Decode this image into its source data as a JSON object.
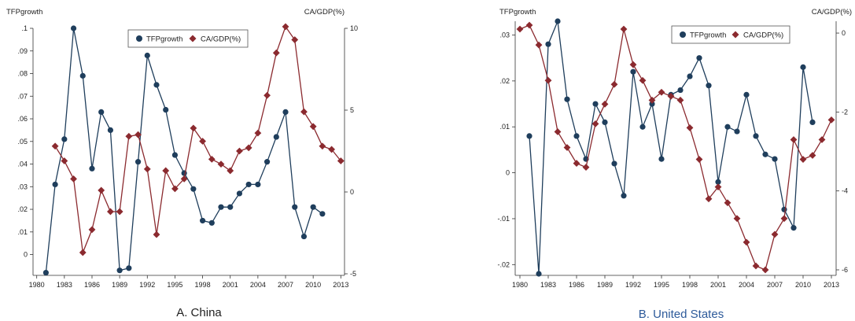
{
  "colors": {
    "tfp": "#1f3e5c",
    "ca": "#8b2a2f",
    "panel_b_title": "#2d5a9a",
    "panel_a_title": "#222222"
  },
  "chart_data": [
    {
      "type": "line",
      "panel_title": "A. China",
      "ylabel_left": "TFPgrowth",
      "ylabel_right": "CA/GDP(%)",
      "x_ticks": [
        1980,
        1983,
        1986,
        1989,
        1992,
        1995,
        1998,
        2001,
        2004,
        2007,
        2010,
        2013
      ],
      "xlim": [
        1979.6,
        2013.4
      ],
      "left_ticks": [
        0.1,
        0.09,
        0.08,
        0.07,
        0.06,
        0.05,
        0.04,
        0.03,
        0.02,
        0.01,
        0
      ],
      "left_tick_labels": [
        ".1",
        ".09",
        ".08",
        ".07",
        ".06",
        ".05",
        ".04",
        ".03",
        ".02",
        ".01",
        "0"
      ],
      "ylim_left": [
        -0.0085,
        0.1
      ],
      "right_ticks": [
        10,
        5,
        0,
        -5
      ],
      "right_tick_labels": [
        "10",
        "5",
        "0",
        "-5"
      ],
      "ylim_right": [
        -5,
        10
      ],
      "legend": {
        "placement": "top-center",
        "labels": [
          "TFPgrowth",
          "CA/GDP(%)"
        ]
      },
      "series": [
        {
          "name": "TFPgrowth",
          "axis": "left",
          "marker": "circle",
          "x": [
            1981,
            1982,
            1983,
            1984,
            1985,
            1986,
            1987,
            1988,
            1989,
            1990,
            1991,
            1992,
            1993,
            1994,
            1995,
            1996,
            1997,
            1998,
            1999,
            2000,
            2001,
            2002,
            2003,
            2004,
            2005,
            2006,
            2007,
            2008,
            2009,
            2010,
            2011
          ],
          "values": [
            -0.008,
            0.031,
            0.051,
            0.1,
            0.079,
            0.038,
            0.063,
            0.055,
            -0.007,
            -0.006,
            0.041,
            0.088,
            0.075,
            0.064,
            0.044,
            0.036,
            0.029,
            0.015,
            0.014,
            0.021,
            0.021,
            0.027,
            0.031,
            0.031,
            0.041,
            0.052,
            0.063,
            0.021,
            0.008,
            0.021,
            0.018
          ]
        },
        {
          "name": "CA/GDP(%)",
          "axis": "right",
          "marker": "diamond",
          "x": [
            1982,
            1983,
            1984,
            1985,
            1986,
            1987,
            1988,
            1989,
            1990,
            1991,
            1992,
            1993,
            1994,
            1995,
            1996,
            1997,
            1998,
            1999,
            2000,
            2001,
            2002,
            2003,
            2004,
            2005,
            2006,
            2007,
            2008,
            2009,
            2010,
            2011,
            2012,
            2013
          ],
          "values": [
            2.8,
            1.9,
            0.8,
            -3.7,
            -2.3,
            0.1,
            -1.2,
            -1.2,
            3.4,
            3.5,
            1.4,
            -2.6,
            1.3,
            0.2,
            0.8,
            3.9,
            3.1,
            2.0,
            1.7,
            1.3,
            2.5,
            2.7,
            3.6,
            5.9,
            8.5,
            10.1,
            9.3,
            4.9,
            4.0,
            2.8,
            2.6,
            1.9
          ]
        }
      ]
    },
    {
      "type": "line",
      "panel_title": "B. United States",
      "ylabel_left": "TFPgrowth",
      "ylabel_right": "CA/GDP(%)",
      "x_ticks": [
        1980,
        1983,
        1986,
        1989,
        1992,
        1995,
        1998,
        2001,
        2004,
        2007,
        2010,
        2013
      ],
      "xlim": [
        1979.5,
        2013.5
      ],
      "left_ticks": [
        0.03,
        0.02,
        0.01,
        0,
        -0.01,
        -0.02
      ],
      "left_tick_labels": [
        ".03",
        ".02",
        ".01",
        "0",
        "-.01",
        "-.02"
      ],
      "ylim_left": [
        -0.022,
        0.033
      ],
      "right_ticks": [
        0,
        -2,
        -4,
        -6
      ],
      "right_tick_labels": [
        "0",
        "-2",
        "-4",
        "-6"
      ],
      "ylim_right": [
        -6.1,
        0.3
      ],
      "legend": {
        "placement": "top-right",
        "labels": [
          "TFPgrowth",
          "CA/GDP(%)"
        ]
      },
      "series": [
        {
          "name": "TFPgrowth",
          "axis": "left",
          "marker": "circle",
          "x": [
            1981,
            1982,
            1983,
            1984,
            1985,
            1986,
            1987,
            1988,
            1989,
            1990,
            1991,
            1992,
            1993,
            1994,
            1995,
            1996,
            1997,
            1998,
            1999,
            2000,
            2001,
            2002,
            2003,
            2004,
            2005,
            2006,
            2007,
            2008,
            2009,
            2010,
            2011
          ],
          "values": [
            0.008,
            -0.022,
            0.028,
            0.033,
            0.016,
            0.008,
            0.003,
            0.015,
            0.011,
            0.002,
            -0.005,
            0.022,
            0.01,
            0.015,
            0.003,
            0.017,
            0.018,
            0.021,
            0.025,
            0.019,
            -0.002,
            0.01,
            0.009,
            0.017,
            0.008,
            0.004,
            0.003,
            -0.008,
            -0.012,
            0.023,
            0.011
          ]
        },
        {
          "name": "CA/GDP(%)",
          "axis": "right",
          "marker": "diamond",
          "x": [
            1980,
            1981,
            1982,
            1983,
            1984,
            1985,
            1986,
            1987,
            1988,
            1989,
            1990,
            1991,
            1992,
            1993,
            1994,
            1995,
            1996,
            1997,
            1998,
            1999,
            2000,
            2001,
            2002,
            2003,
            2004,
            2005,
            2006,
            2007,
            2008,
            2009,
            2010,
            2011,
            2012,
            2013
          ],
          "values": [
            0.1,
            0.2,
            -0.3,
            -1.2,
            -2.5,
            -2.9,
            -3.3,
            -3.4,
            -2.3,
            -1.8,
            -1.3,
            0.1,
            -0.8,
            -1.2,
            -1.7,
            -1.5,
            -1.6,
            -1.7,
            -2.4,
            -3.2,
            -4.2,
            -3.9,
            -4.3,
            -4.7,
            -5.3,
            -5.9,
            -6.0,
            -5.1,
            -4.7,
            -2.7,
            -3.2,
            -3.1,
            -2.7,
            -2.2
          ]
        }
      ]
    }
  ]
}
